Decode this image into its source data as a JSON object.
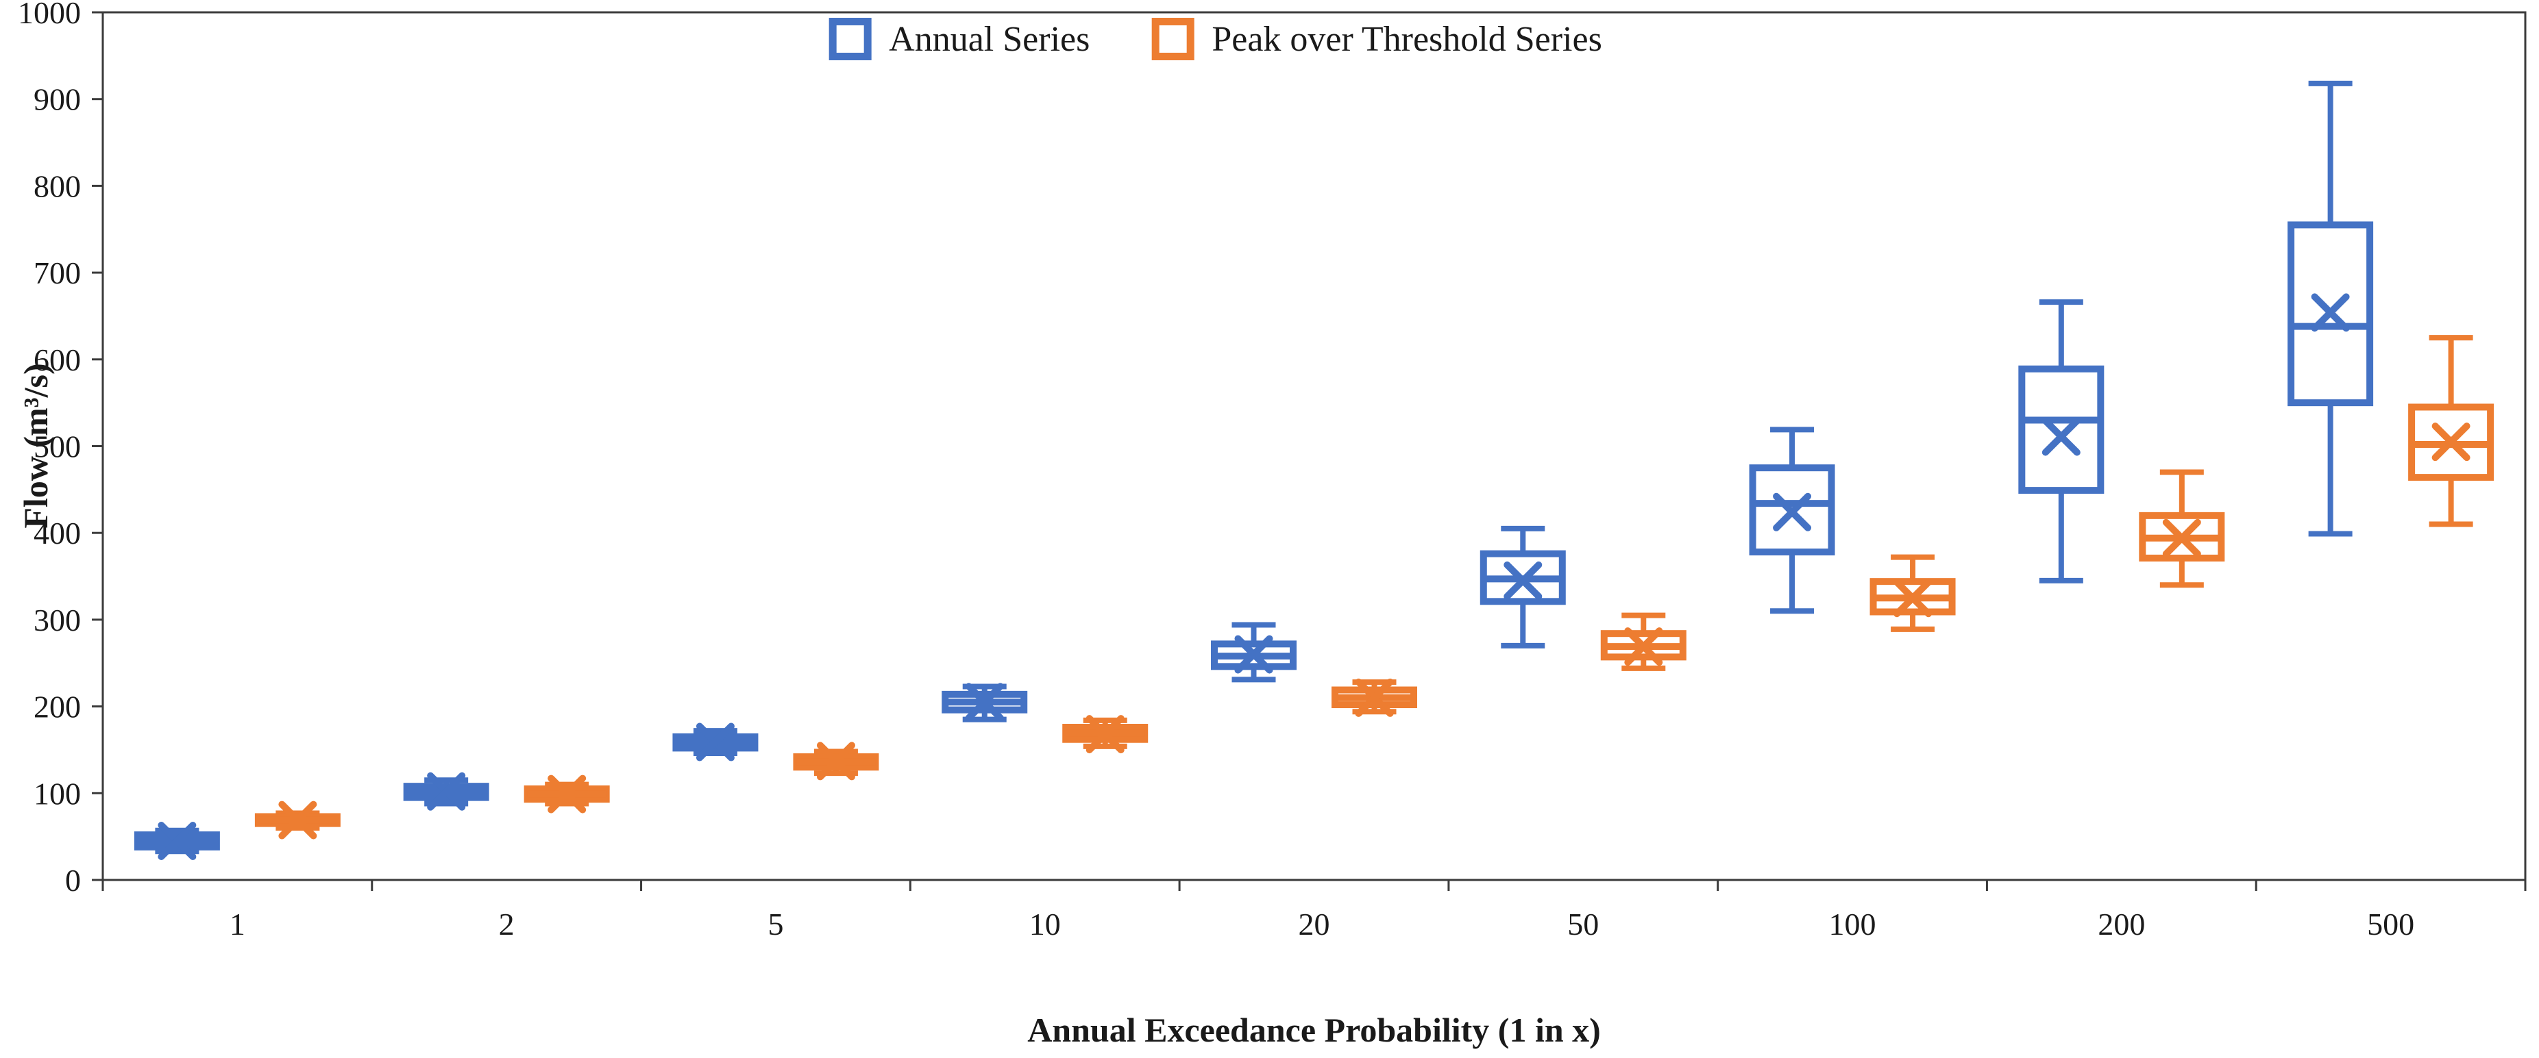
{
  "chart_data": {
    "type": "boxplot",
    "title": "",
    "xlabel": "Annual Exceedance Probability (1 in x)",
    "ylabel": "Flow (m³/s)",
    "ylim": [
      0,
      1000
    ],
    "yticks": [
      0,
      100,
      200,
      300,
      400,
      500,
      600,
      700,
      800,
      900,
      1000
    ],
    "categories": [
      "1",
      "2",
      "5",
      "10",
      "20",
      "50",
      "100",
      "200",
      "500"
    ],
    "grid": false,
    "legend_position": "top-center",
    "axis_color": "#3b3b3b",
    "text_color": "#1a1a1a",
    "series": [
      {
        "name": "Annual Series",
        "color": "#4472C4",
        "boxes": [
          {
            "low": 33,
            "q1": 38,
            "median": 45,
            "q3": 52,
            "high": 57,
            "mean": 45
          },
          {
            "low": 88,
            "q1": 95,
            "median": 101,
            "q3": 108,
            "high": 115,
            "mean": 102
          },
          {
            "low": 146,
            "q1": 152,
            "median": 158,
            "q3": 165,
            "high": 172,
            "mean": 159
          },
          {
            "low": 185,
            "q1": 196,
            "median": 205,
            "q3": 214,
            "high": 223,
            "mean": 205
          },
          {
            "low": 231,
            "q1": 246,
            "median": 258,
            "q3": 272,
            "high": 294,
            "mean": 260
          },
          {
            "low": 270,
            "q1": 321,
            "median": 347,
            "q3": 376,
            "high": 405,
            "mean": 345
          },
          {
            "low": 310,
            "q1": 378,
            "median": 434,
            "q3": 475,
            "high": 519,
            "mean": 424
          },
          {
            "low": 345,
            "q1": 449,
            "median": 530,
            "q3": 589,
            "high": 666,
            "mean": 511
          },
          {
            "low": 399,
            "q1": 550,
            "median": 638,
            "q3": 755,
            "high": 918,
            "mean": 654
          }
        ]
      },
      {
        "name": "Peak over Threshold Series",
        "color": "#ED7D31",
        "boxes": [
          {
            "low": 60,
            "q1": 65,
            "median": 69,
            "q3": 73,
            "high": 77,
            "mean": 69
          },
          {
            "low": 88,
            "q1": 93,
            "median": 99,
            "q3": 105,
            "high": 110,
            "mean": 99
          },
          {
            "low": 123,
            "q1": 130,
            "median": 136,
            "q3": 142,
            "high": 148,
            "mean": 137
          },
          {
            "low": 154,
            "q1": 162,
            "median": 169,
            "q3": 176,
            "high": 184,
            "mean": 168
          },
          {
            "low": 194,
            "q1": 202,
            "median": 210,
            "q3": 219,
            "high": 228,
            "mean": 210
          },
          {
            "low": 244,
            "q1": 257,
            "median": 269,
            "q3": 284,
            "high": 305,
            "mean": 269
          },
          {
            "low": 289,
            "q1": 309,
            "median": 325,
            "q3": 344,
            "high": 372,
            "mean": 325
          },
          {
            "low": 340,
            "q1": 371,
            "median": 394,
            "q3": 420,
            "high": 470,
            "mean": 394
          },
          {
            "low": 410,
            "q1": 464,
            "median": 502,
            "q3": 545,
            "high": 625,
            "mean": 505
          }
        ]
      }
    ]
  }
}
